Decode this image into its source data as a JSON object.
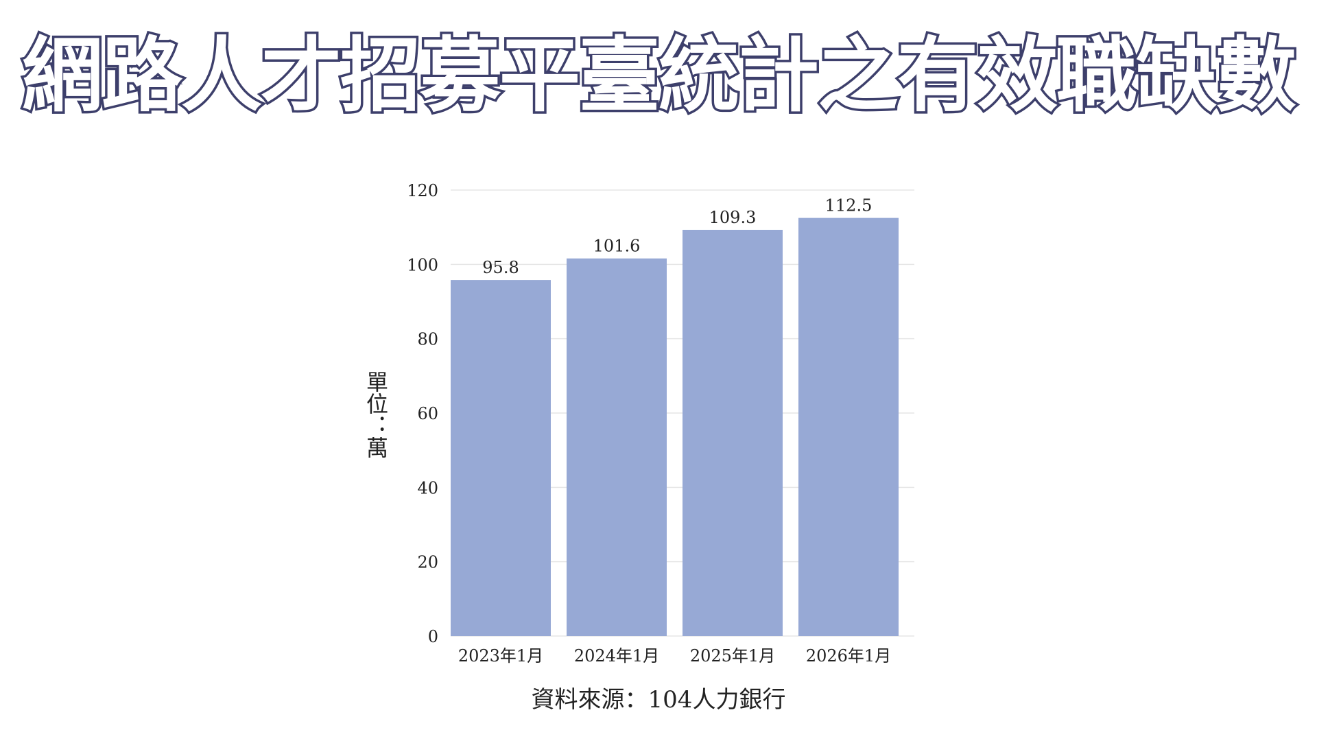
{
  "title": "網路人才招募平臺統計之有效職缺數",
  "source": "資料來源：104人力銀行",
  "colors": {
    "bar": "#97a9d5",
    "grid": "#e6e6e6",
    "title_stroke": "#3d3f6b",
    "text": "#222222"
  },
  "chart_data": {
    "type": "bar",
    "title": "網路人才招募平臺統計之有效職缺數",
    "ylabel": "單位：萬",
    "xlabel": "",
    "categories": [
      "2023年1月",
      "2024年1月",
      "2025年1月",
      "2026年1月"
    ],
    "values": [
      95.8,
      101.6,
      109.3,
      112.5
    ],
    "value_labels": [
      "95.8",
      "101.6",
      "109.3",
      "112.5"
    ],
    "ylim": [
      0,
      120
    ],
    "yticks": [
      0,
      20,
      40,
      60,
      80,
      100,
      120
    ],
    "ytick_labels": [
      "0",
      "20",
      "40",
      "60",
      "80",
      "100",
      "120"
    ],
    "grid": true,
    "legend": "none"
  }
}
